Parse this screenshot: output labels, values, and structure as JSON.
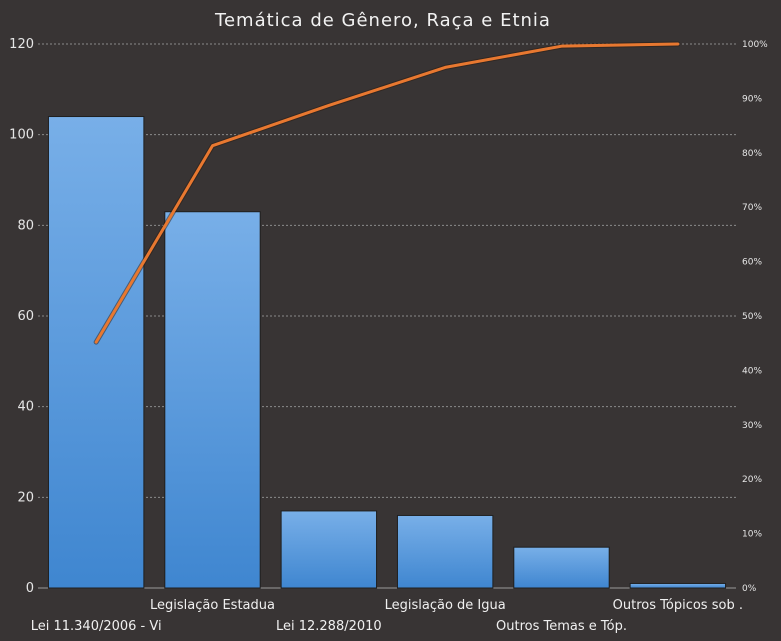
{
  "chart_data": {
    "type": "bar",
    "title": "Temática de Gênero, Raça e Etnia",
    "categories": [
      "Lei 11.340/2006 - Vi",
      "Legislação Estadua",
      "Lei 12.288/2010",
      "Legislação de Igua",
      "Outros Temas e Tóp.",
      "Outros Tópicos sob ."
    ],
    "series": [
      {
        "type": "bar",
        "values": [
          104,
          83,
          17,
          16,
          9,
          1
        ]
      },
      {
        "type": "line",
        "axis": "secondary",
        "values": [
          45.2,
          81.3,
          88.7,
          95.7,
          99.6,
          100
        ]
      }
    ],
    "ylim": [
      0,
      120
    ],
    "yticks": [
      "0",
      "20",
      "40",
      "60",
      "80",
      "100",
      "120"
    ],
    "y2lim": [
      0,
      100
    ],
    "y2ticks": [
      "0%",
      "10%",
      "20%",
      "30%",
      "40%",
      "50%",
      "60%",
      "70%",
      "80%",
      "90%",
      "100%"
    ],
    "grid": true,
    "colors": {
      "bar": "#4a8fd6",
      "bar_light": "#76aee8",
      "line": "#e87830",
      "grid": "#8a8a8a",
      "background": "#383434"
    }
  }
}
